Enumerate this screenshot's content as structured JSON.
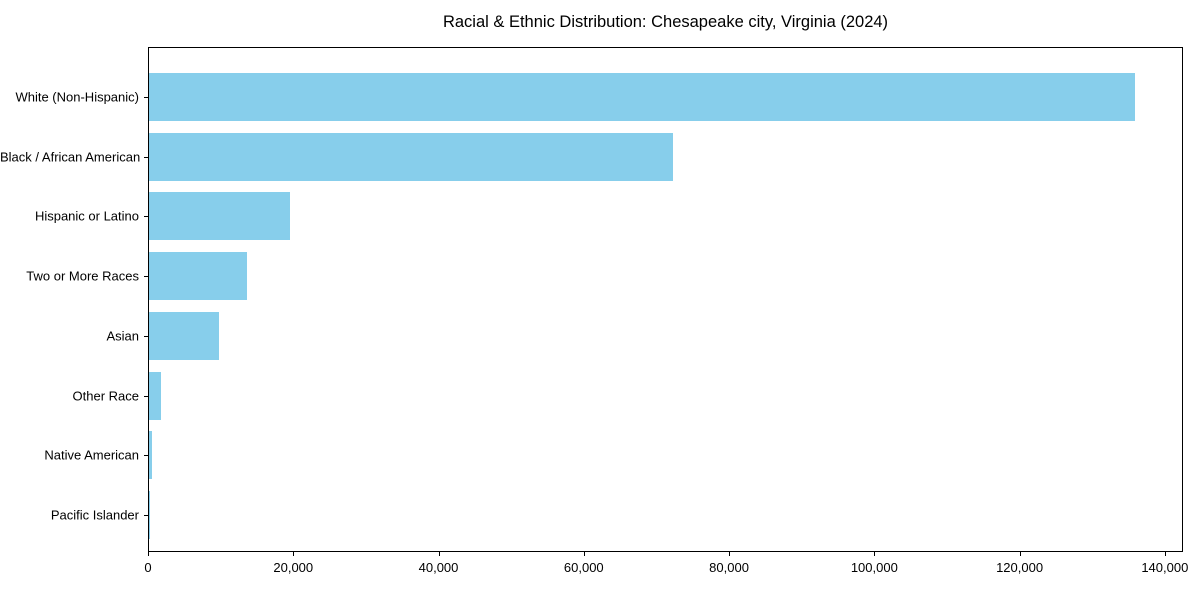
{
  "chart_data": {
    "type": "bar",
    "orientation": "horizontal",
    "title": "Racial & Ethnic Distribution: Chesapeake city, Virginia (2024)",
    "categories": [
      "White (Non-Hispanic)",
      "Black / African American",
      "Hispanic or Latino",
      "Two or More Races",
      "Asian",
      "Other Race",
      "Native American",
      "Pacific Islander"
    ],
    "values": [
      135700,
      72100,
      19400,
      13500,
      9600,
      1700,
      400,
      100
    ],
    "bar_color": "#87CEEB",
    "xlabel": "",
    "ylabel": "",
    "xlim": [
      0,
      142500
    ],
    "x_ticks": [
      0,
      20000,
      40000,
      60000,
      80000,
      100000,
      120000,
      140000
    ],
    "x_tick_labels": [
      "0",
      "20,000",
      "40,000",
      "60,000",
      "80,000",
      "100,000",
      "120,000",
      "140,000"
    ],
    "grid": false,
    "legend": "none",
    "spine_color": "#000000",
    "background_color": "#ffffff"
  }
}
